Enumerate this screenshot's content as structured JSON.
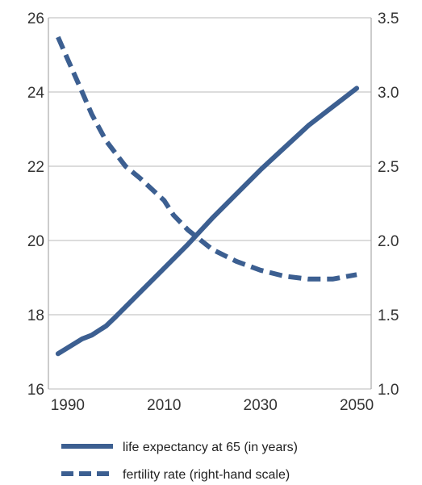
{
  "chart_data": {
    "type": "line",
    "grid": "horizontal",
    "legend_placement": "bottom",
    "x_axis": {
      "range": [
        1986,
        2053
      ],
      "ticks": [
        1990,
        2010,
        2030,
        2050
      ]
    },
    "y_left_axis": {
      "range": [
        16,
        26
      ],
      "ticks": [
        16,
        18,
        20,
        22,
        24,
        26
      ]
    },
    "y_right_axis": {
      "range": [
        1.0,
        3.5
      ],
      "ticks": [
        "1.0",
        "1.5",
        "2.0",
        "2.5",
        "3.0",
        "3.5"
      ]
    },
    "series": [
      {
        "name": "life expectancy at 65 (in years)",
        "axis": "left",
        "style": "solid",
        "color": "#3c5f91",
        "points": [
          [
            1988,
            16.95
          ],
          [
            1993,
            17.35
          ],
          [
            1995,
            17.45
          ],
          [
            1998,
            17.7
          ],
          [
            2000,
            17.95
          ],
          [
            2005,
            18.6
          ],
          [
            2010,
            19.25
          ],
          [
            2015,
            19.9
          ],
          [
            2020,
            20.6
          ],
          [
            2025,
            21.25
          ],
          [
            2030,
            21.9
          ],
          [
            2035,
            22.5
          ],
          [
            2040,
            23.1
          ],
          [
            2045,
            23.6
          ],
          [
            2050,
            24.1
          ]
        ]
      },
      {
        "name": "fertility rate (right-hand scale)",
        "axis": "right",
        "style": "dashed",
        "color": "#3c5f91",
        "points": [
          [
            1988,
            3.37
          ],
          [
            1990,
            3.22
          ],
          [
            1993,
            3.0
          ],
          [
            1995,
            2.85
          ],
          [
            1998,
            2.67
          ],
          [
            2002,
            2.5
          ],
          [
            2005,
            2.42
          ],
          [
            2008,
            2.33
          ],
          [
            2010,
            2.27
          ],
          [
            2012,
            2.17
          ],
          [
            2015,
            2.07
          ],
          [
            2020,
            1.94
          ],
          [
            2025,
            1.86
          ],
          [
            2030,
            1.8
          ],
          [
            2035,
            1.76
          ],
          [
            2040,
            1.74
          ],
          [
            2045,
            1.74
          ],
          [
            2050,
            1.77
          ]
        ]
      }
    ]
  }
}
